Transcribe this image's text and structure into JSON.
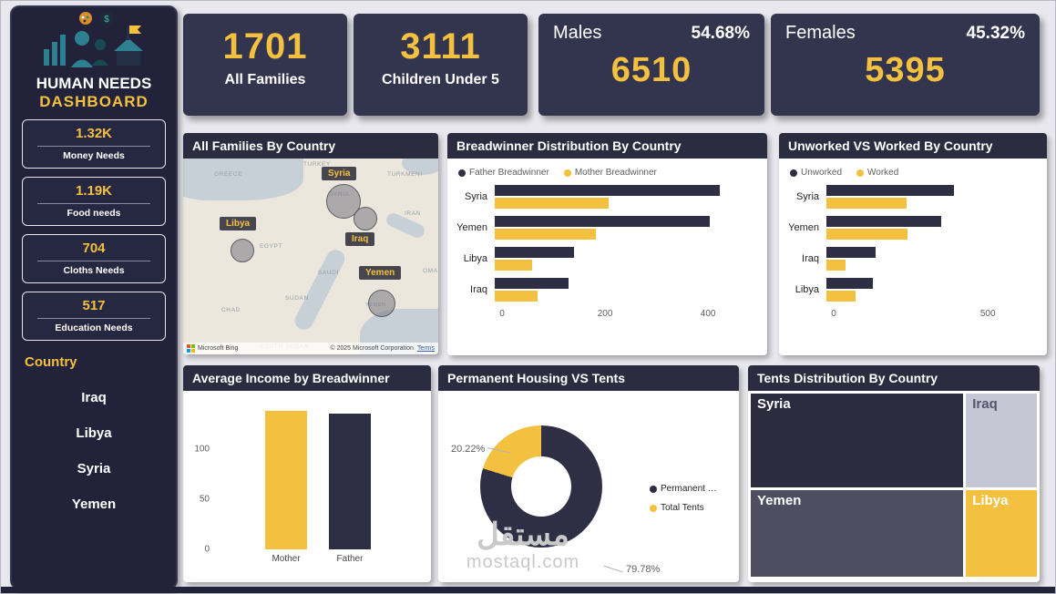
{
  "colors": {
    "yellow": "#F3C13F",
    "dark": "#2E2F44",
    "panel_header": "#2B2C40",
    "sidebar_bg": "#22233A",
    "card_bg": "#33344E",
    "page_bg": "#E8E8EE"
  },
  "sidebar": {
    "title_line1": "HUMAN NEEDS",
    "title_line2": "DASHBOARD",
    "needs": [
      {
        "value": "1.32K",
        "label": "Money Needs"
      },
      {
        "value": "1.19K",
        "label": "Food needs"
      },
      {
        "value": "704",
        "label": "Cloths Needs"
      },
      {
        "value": "517",
        "label": "Education Needs"
      }
    ],
    "filter_title": "Country",
    "countries": [
      "Iraq",
      "Libya",
      "Syria",
      "Yemen"
    ]
  },
  "cards": {
    "families": {
      "value": "1701",
      "label": "All Families"
    },
    "children": {
      "value": "3111",
      "label": "Children Under 5"
    },
    "males": {
      "title": "Males",
      "percent": "54.68%",
      "value": "6510"
    },
    "females": {
      "title": "Females",
      "percent": "45.32%",
      "value": "5395"
    }
  },
  "map": {
    "title": "All Families By Country",
    "tags": [
      "Syria",
      "Libya",
      "Iraq",
      "Yemen"
    ],
    "geo_labels": [
      "GREECE",
      "TURKEY",
      "TURKMENI",
      "IRAN",
      "EGYPT",
      "SUDAN",
      "CHAD",
      "SOUTH SUDAN",
      "OMA",
      "YEMEN",
      "SYRIA",
      "SAUDI"
    ],
    "provider": "Microsoft Bing",
    "attribution": "© 2025 Microsoft Corporation",
    "terms": "Terms"
  },
  "watermark": {
    "arabic": "مستقل",
    "latin": "mostaql.com"
  },
  "chart_data": [
    {
      "id": "breadwinner",
      "type": "hbar",
      "title": "Breadwinner Distribution By Country",
      "categories": [
        "Syria",
        "Yemen",
        "Libya",
        "Iraq"
      ],
      "series": [
        {
          "name": "Father Breadwinner",
          "color": "#2E2F44",
          "values": [
            425,
            405,
            150,
            140
          ]
        },
        {
          "name": "Mother Breadwinner",
          "color": "#F3C13F",
          "values": [
            215,
            190,
            70,
            80
          ]
        }
      ],
      "xlim": [
        0,
        490
      ],
      "xticks": [
        0,
        200,
        400
      ],
      "legend_position": "top",
      "grid": false
    },
    {
      "id": "unworked",
      "type": "hbar",
      "title": "Unworked VS Worked By Country",
      "categories": [
        "Syria",
        "Yemen",
        "Iraq",
        "Libya"
      ],
      "series": [
        {
          "name": "Unworked",
          "color": "#2E2F44",
          "values": [
            400,
            360,
            155,
            145
          ]
        },
        {
          "name": "Worked",
          "color": "#F3C13F",
          "values": [
            250,
            255,
            60,
            90
          ]
        }
      ],
      "xlim": [
        0,
        650
      ],
      "xticks": [
        0,
        500
      ],
      "legend_position": "top",
      "grid": false
    },
    {
      "id": "income",
      "type": "bar",
      "title": "Average Income by Breadwinner",
      "categories": [
        "Mother",
        "Father"
      ],
      "values": [
        138,
        135
      ],
      "colors": [
        "#F3C13F",
        "#2E2F44"
      ],
      "ylim": [
        0,
        145
      ],
      "yticks": [
        0,
        50,
        100
      ],
      "grid": false
    },
    {
      "id": "housing",
      "type": "pie",
      "title": "Permanent Housing VS Tents",
      "donut": true,
      "legend_position": "right",
      "slices": [
        {
          "name": "Permanent …",
          "value": 79.78,
          "label": "79.78%",
          "color": "#2E2F44"
        },
        {
          "name": "Total Tents",
          "value": 20.22,
          "label": "20.22%",
          "color": "#F3C13F"
        }
      ]
    },
    {
      "id": "tents",
      "type": "treemap",
      "title": "Tents Distribution By Country",
      "rows": [
        {
          "h": 52,
          "tiles": [
            {
              "name": "Syria",
              "w": 75,
              "color": "#2C2C3E",
              "text": "#FFFFFF"
            },
            {
              "name": "Iraq",
              "w": 25,
              "color": "#C6C6D4",
              "text": "#55556A"
            }
          ]
        },
        {
          "h": 48,
          "tiles": [
            {
              "name": "Yemen",
              "w": 75,
              "color": "#4E4E60",
              "text": "#FFFFFF"
            },
            {
              "name": "Libya",
              "w": 25,
              "color": "#F3C13F",
              "text": "#FFFFFF"
            }
          ]
        }
      ]
    }
  ]
}
